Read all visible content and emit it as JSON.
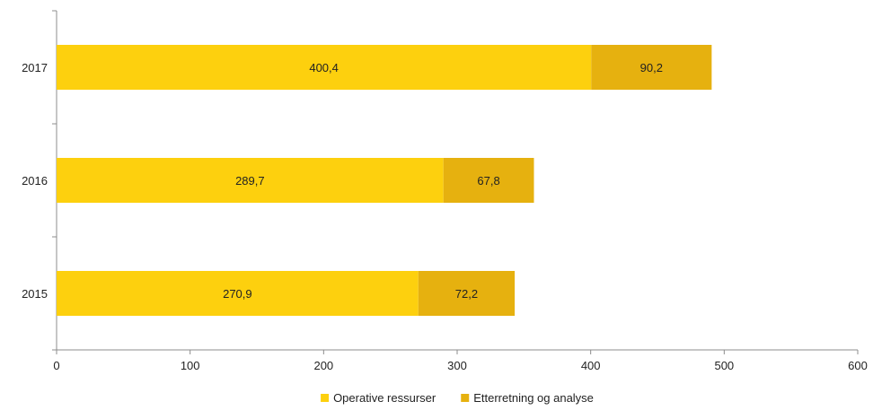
{
  "chart_data": {
    "type": "bar",
    "orientation": "horizontal",
    "stacked": true,
    "categories": [
      "2015",
      "2016",
      "2017"
    ],
    "series": [
      {
        "name": "Operative ressurser",
        "values": [
          270.9,
          289.7,
          400.4
        ],
        "labels": [
          "270,9",
          "289,7",
          "400,4"
        ],
        "color": "#FDD00E"
      },
      {
        "name": "Etterretning og analyse",
        "values": [
          72.2,
          67.8,
          90.2
        ],
        "labels": [
          "72,2",
          "67,8",
          "90,2"
        ],
        "color": "#E6B10F"
      }
    ],
    "xlim": [
      0,
      600
    ],
    "xticks": [
      "0",
      "100",
      "200",
      "300",
      "400",
      "500",
      "600"
    ],
    "grid": false,
    "legend": "bottom"
  }
}
